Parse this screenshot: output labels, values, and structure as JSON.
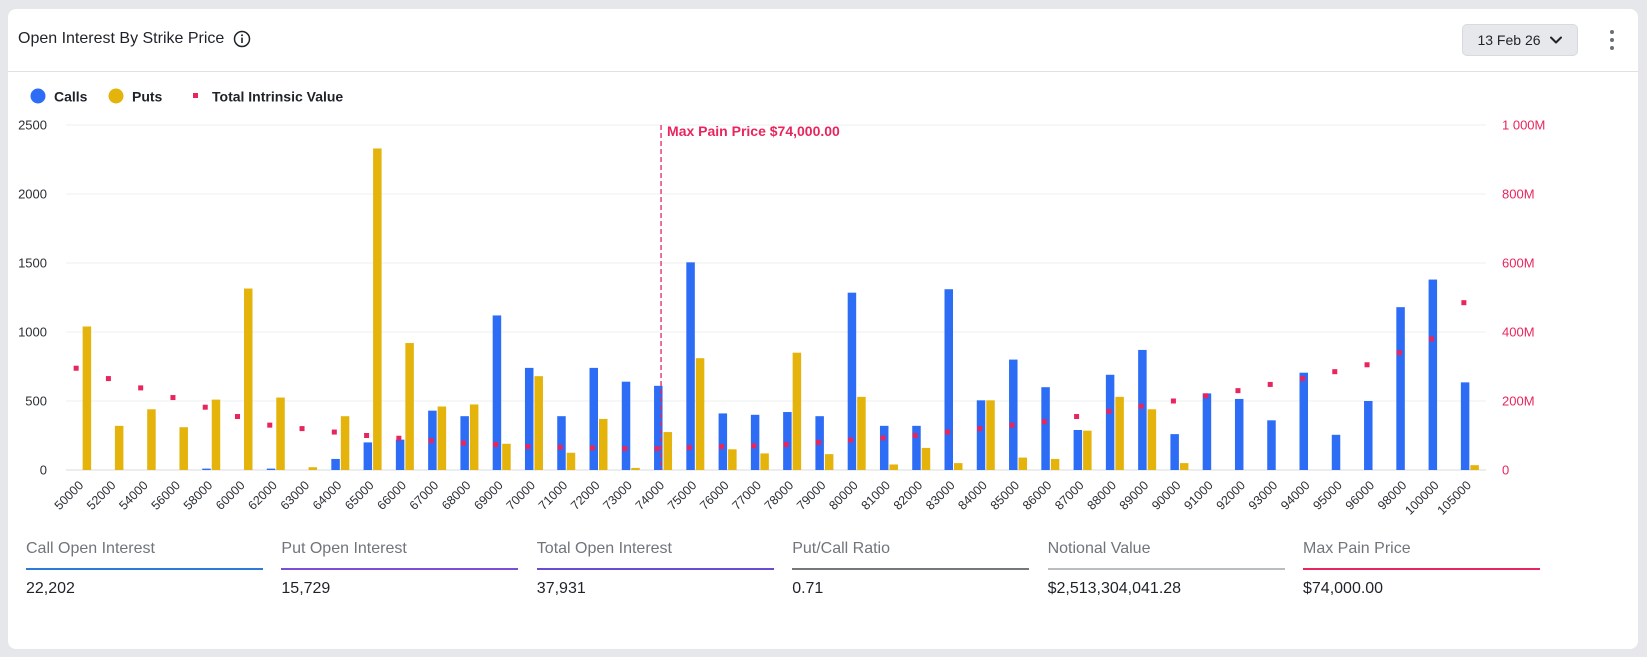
{
  "header": {
    "title": "Open Interest By Strike Price",
    "date_label": "13 Feb 26"
  },
  "colors": {
    "calls": "#2d6df6",
    "puts": "#e4b40c",
    "intrinsic": "#e8255d",
    "grid": "#eef0f2"
  },
  "chart_data": {
    "type": "bar",
    "legend": {
      "placement": "top-left",
      "items": [
        "Calls",
        "Puts",
        "Total Intrinsic Value"
      ]
    },
    "categories": [
      "50000",
      "52000",
      "54000",
      "56000",
      "58000",
      "60000",
      "62000",
      "63000",
      "64000",
      "65000",
      "66000",
      "67000",
      "68000",
      "69000",
      "70000",
      "71000",
      "72000",
      "73000",
      "74000",
      "75000",
      "76000",
      "77000",
      "78000",
      "79000",
      "80000",
      "81000",
      "82000",
      "83000",
      "84000",
      "85000",
      "86000",
      "87000",
      "88000",
      "89000",
      "90000",
      "91000",
      "92000",
      "93000",
      "94000",
      "95000",
      "96000",
      "98000",
      "100000",
      "105000"
    ],
    "series": [
      {
        "name": "Calls",
        "axis": "left",
        "values": [
          0,
          0,
          0,
          0,
          10,
          0,
          10,
          0,
          80,
          200,
          220,
          430,
          390,
          1120,
          740,
          390,
          740,
          640,
          610,
          1505,
          410,
          400,
          420,
          390,
          1285,
          320,
          320,
          1310,
          505,
          800,
          600,
          290,
          690,
          870,
          260,
          555,
          515,
          360,
          705,
          255,
          500,
          1180,
          1380,
          635
        ]
      },
      {
        "name": "Puts",
        "axis": "left",
        "values": [
          1040,
          320,
          440,
          310,
          510,
          1315,
          525,
          20,
          390,
          2330,
          920,
          460,
          475,
          190,
          680,
          125,
          370,
          15,
          275,
          810,
          150,
          120,
          850,
          115,
          530,
          40,
          160,
          50,
          505,
          90,
          80,
          285,
          530,
          440,
          50,
          0,
          0,
          0,
          0,
          0,
          0,
          0,
          0,
          35
        ]
      },
      {
        "name": "Total Intrinsic Value",
        "axis": "right",
        "type": "scatter",
        "values": [
          295,
          265,
          238,
          210,
          182,
          155,
          130,
          120,
          110,
          100,
          92,
          85,
          78,
          74,
          68,
          66,
          64,
          62,
          62,
          65,
          68,
          70,
          74,
          80,
          87,
          93,
          100,
          110,
          120,
          130,
          140,
          155,
          170,
          185,
          200,
          215,
          230,
          248,
          265,
          285,
          305,
          340,
          380,
          485
        ],
        "unit": "M"
      }
    ],
    "y_left": {
      "ylim": [
        0,
        2500
      ],
      "ticks": [
        "0",
        "500",
        "1000",
        "1500",
        "2000",
        "2500"
      ]
    },
    "y_right": {
      "ylim": [
        0,
        1000
      ],
      "ticks": [
        "0",
        "200M",
        "400M",
        "600M",
        "800M",
        "1 000M"
      ]
    },
    "annotation": {
      "strike": "74000",
      "label": "Max Pain Price $74,000.00"
    },
    "grid": true
  },
  "stats": [
    {
      "label": "Call Open Interest",
      "value": "22,202",
      "color": "#2e7bd6"
    },
    {
      "label": "Put Open Interest",
      "value": "15,729",
      "color": "#7a4fd8"
    },
    {
      "label": "Total Open Interest",
      "value": "37,931",
      "color": "#6a4bd2"
    },
    {
      "label": "Put/Call Ratio",
      "value": "0.71",
      "color": "#74777c"
    },
    {
      "label": "Notional Value",
      "value": "$2,513,304,041.28",
      "color": "#b9bcc1"
    },
    {
      "label": "Max Pain Price",
      "value": "$74,000.00",
      "color": "#e8255d"
    }
  ]
}
